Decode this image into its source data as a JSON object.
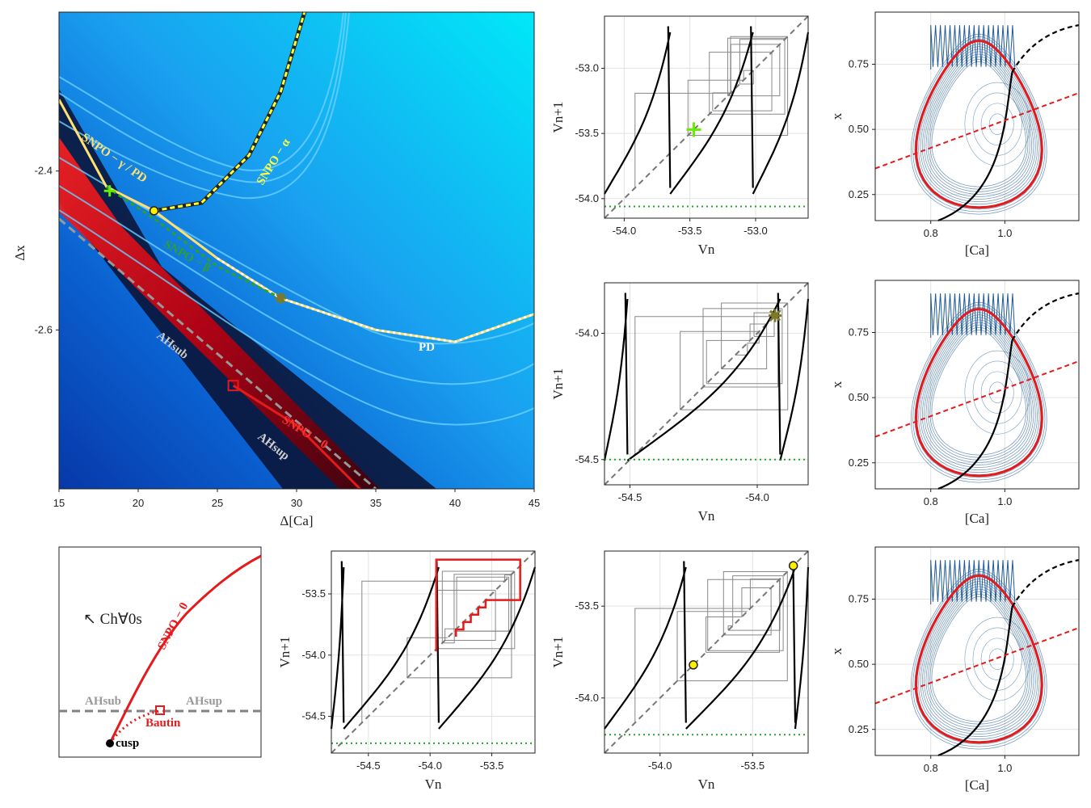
{
  "colors": {
    "black": "#000000",
    "red": "#e41a1c",
    "gray": "#808080",
    "green": "#2ca02c",
    "yellow": "#ffee00",
    "blue": "#1f5a96",
    "white": "#ffffff",
    "lime": "#66ee00",
    "olive": "#7a7a2a"
  },
  "panels": {
    "main": {
      "xlabel": "Δ[Ca]",
      "ylabel": "Δx",
      "xticks": [
        "15",
        "20",
        "25",
        "30",
        "35",
        "40",
        "45"
      ],
      "yticks": [
        "-2.4",
        "-2.6"
      ],
      "xlim": [
        15,
        45
      ],
      "ylim": [
        -2.8,
        -2.2
      ],
      "annotations": {
        "sn_gamma_pd": "SNPO − γ / PD",
        "sn_alpha": "SNPO − α",
        "sn_beta": "SNPO − β",
        "pd": "PD",
        "ah_sub": "AHsub",
        "ah_sup": "AHsup",
        "sn_zero": "SNPO − 0"
      }
    },
    "cusp_diagram": {
      "chaos_label": "↖ Ch∀0s",
      "sn_zero": "SNPO − 0",
      "ah_sub": "AHsub",
      "ah_sup": "AHsup",
      "bautin": "Bautin",
      "cusp": "cusp"
    },
    "map1": {
      "xlabel": "Vn",
      "ylabel": "Vn+1",
      "xticks": [
        "-54.0",
        "-53.5",
        "-53.0"
      ],
      "yticks": [
        "-53.0",
        "-53.5",
        "-54.0"
      ],
      "xlim": [
        -54.15,
        -52.6
      ],
      "ylim": [
        -54.15,
        -52.6
      ]
    },
    "map2": {
      "xlabel": "Vn",
      "ylabel": "Vn+1",
      "xticks": [
        "-54.5",
        "-54.0"
      ],
      "yticks": [
        "-54.0",
        "-54.5"
      ],
      "xlim": [
        -54.6,
        -53.8
      ],
      "ylim": [
        -54.6,
        -53.8
      ]
    },
    "map3": {
      "xlabel": "Vn",
      "ylabel": "Vn+1",
      "xticks": [
        "-54.5",
        "-54.0",
        "-53.5"
      ],
      "yticks": [
        "-53.5",
        "-54.0",
        "-54.5"
      ],
      "xlim": [
        -54.8,
        -53.15
      ],
      "ylim": [
        -54.8,
        -53.15
      ]
    },
    "map4": {
      "xlabel": "Vn",
      "ylabel": "Vn+1",
      "xticks": [
        "-54.0",
        "-53.5"
      ],
      "yticks": [
        "-53.5",
        "-54.0"
      ],
      "xlim": [
        -54.3,
        -53.2
      ],
      "ylim": [
        -54.3,
        -53.2
      ]
    },
    "phase1": {
      "xlabel": "[Ca]",
      "ylabel": "x",
      "xticks": [
        "0.8",
        "1.0"
      ],
      "yticks": [
        "0.75",
        "0.50",
        "0.25"
      ],
      "xlim": [
        0.65,
        1.2
      ],
      "ylim": [
        0.15,
        0.95
      ]
    },
    "phase2": {
      "xlabel": "[Ca]",
      "ylabel": "x",
      "xticks": [
        "0.8",
        "1.0"
      ],
      "yticks": [
        "0.75",
        "0.50",
        "0.25"
      ],
      "xlim": [
        0.65,
        1.2
      ],
      "ylim": [
        0.15,
        0.95
      ]
    },
    "phase3": {
      "xlabel": "[Ca]",
      "ylabel": "x",
      "xticks": [
        "0.8",
        "1.0"
      ],
      "yticks": [
        "0.75",
        "0.50",
        "0.25"
      ],
      "xlim": [
        0.65,
        1.2
      ],
      "ylim": [
        0.15,
        0.95
      ]
    }
  },
  "chart_data": [
    {
      "type": "heatmap",
      "panel": "main",
      "xlabel": "Δ[Ca]",
      "ylabel": "Δx",
      "xlim": [
        15,
        45
      ],
      "ylim": [
        -2.8,
        -2.2
      ],
      "curves": {
        "sn_gamma_pd": [
          [
            15,
            -2.31
          ],
          [
            18,
            -2.42
          ],
          [
            21,
            -2.45
          ],
          [
            25,
            -2.51
          ],
          [
            29,
            -2.56
          ],
          [
            35,
            -2.6
          ],
          [
            40,
            -2.615
          ],
          [
            45,
            -2.58
          ]
        ],
        "sn_alpha": [
          [
            21,
            -2.45
          ],
          [
            24,
            -2.44
          ],
          [
            27,
            -2.38
          ],
          [
            29,
            -2.3
          ],
          [
            30.5,
            -2.2
          ]
        ],
        "sn_beta": [
          [
            18,
            -2.42
          ],
          [
            21,
            -2.46
          ],
          [
            25,
            -2.52
          ],
          [
            29,
            -2.56
          ]
        ],
        "ah": [
          [
            15,
            -2.46
          ],
          [
            25,
            -2.63
          ],
          [
            35,
            -2.8
          ]
        ],
        "sn_zero": [
          [
            26,
            -2.67
          ],
          [
            30,
            -2.72
          ],
          [
            34,
            -2.8
          ]
        ]
      },
      "markers": {
        "green_cross": [
          18.2,
          -2.425
        ],
        "yellow_circle": [
          21,
          -2.45
        ],
        "star": [
          29,
          -2.56
        ],
        "red_square": [
          26,
          -2.67
        ]
      }
    },
    {
      "type": "line",
      "panel": "map1",
      "series": [
        {
          "name": "map"
        },
        {
          "name": "diagonal"
        },
        {
          "name": "cobweb"
        }
      ]
    },
    {
      "type": "line",
      "panel": "map2",
      "series": [
        {
          "name": "map"
        },
        {
          "name": "diagonal"
        },
        {
          "name": "cobweb"
        }
      ]
    },
    {
      "type": "line",
      "panel": "map3",
      "series": [
        {
          "name": "map"
        },
        {
          "name": "diagonal"
        },
        {
          "name": "cobweb"
        }
      ]
    },
    {
      "type": "line",
      "panel": "map4",
      "series": [
        {
          "name": "map"
        },
        {
          "name": "diagonal"
        },
        {
          "name": "cobweb"
        }
      ]
    },
    {
      "type": "line",
      "panel": "phase1"
    },
    {
      "type": "line",
      "panel": "phase2"
    },
    {
      "type": "line",
      "panel": "phase3"
    }
  ]
}
